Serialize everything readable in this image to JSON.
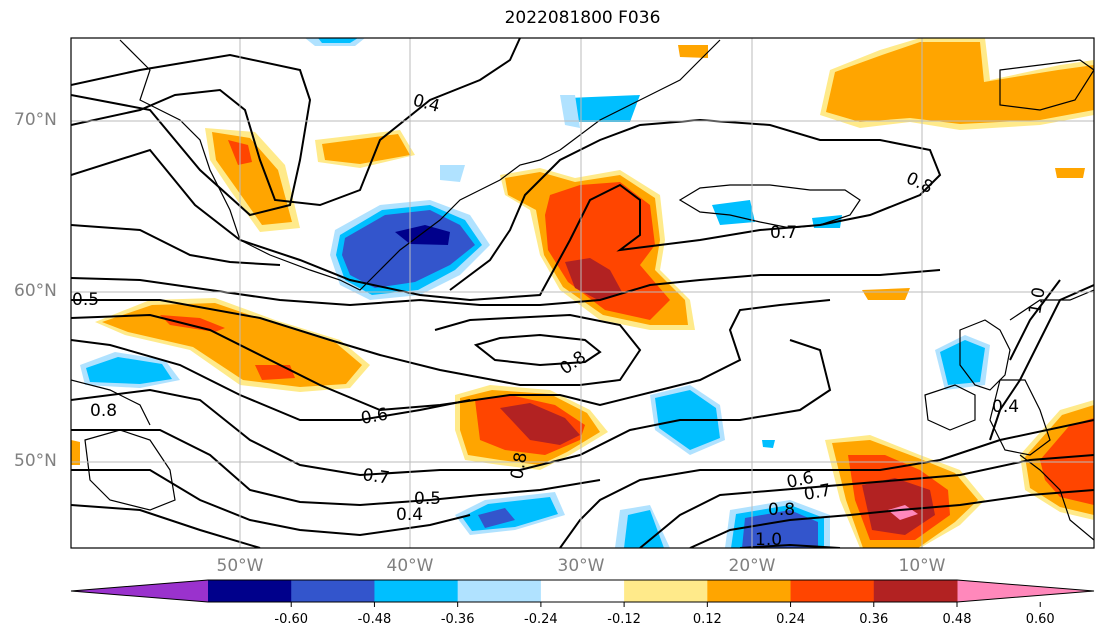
{
  "title": "2022081800 F036",
  "lat_labels": [
    "70°N",
    "60°N",
    "50°N"
  ],
  "lon_labels": [
    "50°W",
    "40°W",
    "30°W",
    "20°W",
    "10°W"
  ],
  "contour_labels": [
    "0.4",
    "0.8",
    "0.7",
    "0.5",
    "0.8",
    "0.8",
    "0.6",
    "0.7",
    "0.5",
    "0.4",
    "0.8",
    "0.6",
    "0.7",
    "0.8",
    "1.0",
    "0.4",
    "1.0"
  ],
  "colorbar": {
    "tick_labels": [
      "-0.60",
      "-0.48",
      "-0.36",
      "-0.24",
      "-0.12",
      "0.12",
      "0.24",
      "0.36",
      "0.48",
      "0.60"
    ],
    "colors": [
      "#9a32cd",
      "#00008b",
      "#3355cc",
      "#00bfff",
      "#b0e2ff",
      "#ffffff",
      "#ffea8a",
      "#ffa500",
      "#ff4500",
      "#b22222",
      "#ff88bb"
    ]
  },
  "palette": {
    "purple": "#9a32cd",
    "navy": "#00008b",
    "blue": "#3355cc",
    "sky": "#00bfff",
    "lightblue": "#b0e2ff",
    "yellow": "#ffea8a",
    "orange": "#ffa500",
    "red": "#ff4500",
    "darkred": "#b22222",
    "pink": "#ff88bb"
  }
}
